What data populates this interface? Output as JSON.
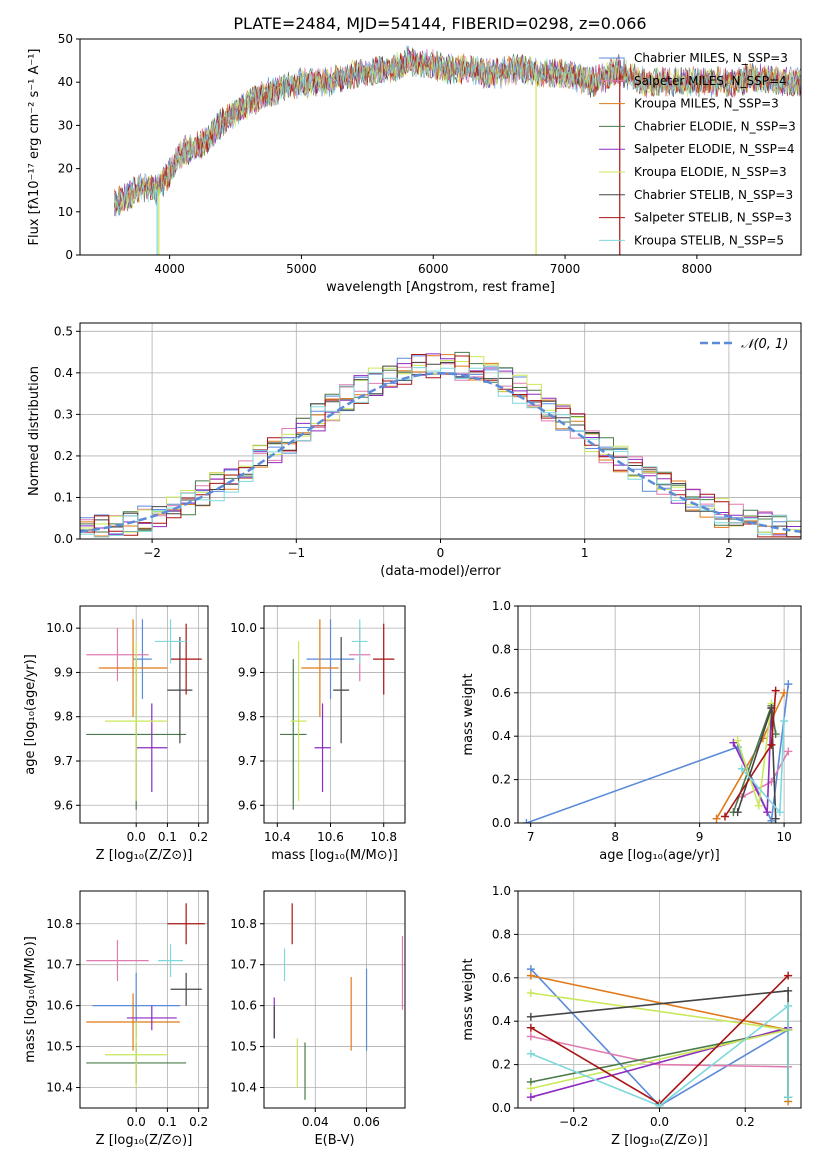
{
  "figure_title": "PLATE=2484, MJD=54144, FIBERID=0298, z=0.066",
  "colors": [
    "#5b8bd9",
    "#e07bb0",
    "#e07a1a",
    "#4a7a4a",
    "#8e2bc0",
    "#c9e85a",
    "#444444",
    "#a81414",
    "#7fd8dc"
  ],
  "chart_data": [
    {
      "id": "spectrum",
      "type": "line",
      "xlabel": "wavelength [Angstrom, rest frame]",
      "ylabel": "Flux [fλ10⁻¹⁷ erg cm⁻² s⁻¹ A⁻¹]",
      "xlim": [
        3320,
        8790
      ],
      "ylim": [
        0,
        50
      ],
      "xticks": [
        4000,
        5000,
        6000,
        7000,
        8000
      ],
      "yticks": [
        0,
        10,
        20,
        30,
        40,
        50
      ],
      "grid": false,
      "legend": "top-right",
      "series_labels": [
        "Chabrier MILES, N_SSP=3",
        "Salpeter MILES, N_SSP=4",
        "Kroupa MILES, N_SSP=3",
        "Chabrier ELODIE, N_SSP=3",
        "Salpeter ELODIE, N_SSP=4",
        "Kroupa ELODIE, N_SSP=3",
        "Chabrier STELIB, N_SSP=3",
        "Salpeter STELIB, N_SSP=3",
        "Kroupa STELIB, N_SSP=5"
      ],
      "continuum": [
        [
          3600,
          12
        ],
        [
          3700,
          14
        ],
        [
          3800,
          16
        ],
        [
          3900,
          15
        ],
        [
          3950,
          17
        ],
        [
          4000,
          19
        ],
        [
          4100,
          24
        ],
        [
          4200,
          25
        ],
        [
          4300,
          27
        ],
        [
          4400,
          31
        ],
        [
          4500,
          33
        ],
        [
          4600,
          35
        ],
        [
          4700,
          37
        ],
        [
          4800,
          38
        ],
        [
          4900,
          39
        ],
        [
          5000,
          40
        ],
        [
          5100,
          40
        ],
        [
          5200,
          40
        ],
        [
          5300,
          41
        ],
        [
          5400,
          42
        ],
        [
          5500,
          42
        ],
        [
          5600,
          43
        ],
        [
          5700,
          43
        ],
        [
          5800,
          45
        ],
        [
          5900,
          44
        ],
        [
          6000,
          44
        ],
        [
          6100,
          43
        ],
        [
          6200,
          43
        ],
        [
          6300,
          43
        ],
        [
          6400,
          42
        ],
        [
          6500,
          42
        ],
        [
          6600,
          43
        ],
        [
          6700,
          43
        ],
        [
          6800,
          42
        ],
        [
          6900,
          42
        ],
        [
          7000,
          42
        ],
        [
          7100,
          41
        ],
        [
          7200,
          40
        ],
        [
          7300,
          41
        ],
        [
          7400,
          43
        ],
        [
          7500,
          41
        ],
        [
          7600,
          40
        ],
        [
          7700,
          40
        ],
        [
          7800,
          40
        ],
        [
          7900,
          40
        ],
        [
          8000,
          40
        ],
        [
          8100,
          40
        ],
        [
          8200,
          40
        ],
        [
          8300,
          40
        ],
        [
          8400,
          41
        ],
        [
          8500,
          41
        ],
        [
          8600,
          40
        ],
        [
          8700,
          40
        ],
        [
          8790,
          40
        ]
      ],
      "drop_lines": [
        [
          3905,
          "#7fd8dc"
        ],
        [
          3918,
          "#c9e85a"
        ],
        [
          6780,
          "#c9e85a"
        ],
        [
          7415,
          "#a81414"
        ]
      ]
    },
    {
      "id": "residual-hist",
      "type": "area",
      "xlabel": "(data-model)/error",
      "ylabel": "Normed distribution",
      "xlim": [
        -2.5,
        2.5
      ],
      "ylim": [
        0,
        0.52
      ],
      "xticks": [
        -2,
        -1,
        0,
        1,
        2
      ],
      "xticklabels": [
        "−2",
        "−1",
        "0",
        "1",
        "2"
      ],
      "yticks": [
        0.0,
        0.1,
        0.2,
        0.3,
        0.4,
        0.5
      ],
      "grid": true,
      "legend": "top-right",
      "legend_label": "𝒩(0, 1)",
      "bin_width": 0.1,
      "bin_start": -2.5
    },
    {
      "id": "age-vs-z",
      "type": "scatter",
      "xlabel": "Z [log₁₀(Z/Z⊙)]",
      "ylabel": "age  [log₁₀(age/yr)]",
      "xlim": [
        -0.18,
        0.23
      ],
      "ylim": [
        9.56,
        10.05
      ],
      "xticks": [
        0.0,
        0.1,
        0.2
      ],
      "yticks": [
        9.6,
        9.7,
        9.8,
        9.9,
        10.0
      ],
      "grid": true,
      "points": [
        {
          "x": 0.02,
          "y": 9.93,
          "ex": 0.03,
          "ey": 0.09
        },
        {
          "x": -0.06,
          "y": 9.94,
          "ex": 0.1,
          "ey": 0.06
        },
        {
          "x": -0.01,
          "y": 9.91,
          "ex": 0.11,
          "ey": 0.11
        },
        {
          "x": 0.0,
          "y": 9.76,
          "ex": 0.16,
          "ey": 0.17
        },
        {
          "x": 0.05,
          "y": 9.73,
          "ex": 0.05,
          "ey": 0.1
        },
        {
          "x": 0.0,
          "y": 9.79,
          "ex": 0.1,
          "ey": 0.18
        },
        {
          "x": 0.14,
          "y": 9.86,
          "ex": 0.04,
          "ey": 0.12
        },
        {
          "x": 0.16,
          "y": 9.93,
          "ex": 0.05,
          "ey": 0.08
        },
        {
          "x": 0.11,
          "y": 9.97,
          "ex": 0.05,
          "ey": 0.05
        }
      ]
    },
    {
      "id": "age-vs-mass",
      "type": "scatter",
      "xlabel": "mass [log₁₀(M/M⊙)]",
      "ylabel": "",
      "xlim": [
        10.35,
        10.88
      ],
      "ylim": [
        9.56,
        10.05
      ],
      "xticks": [
        10.4,
        10.6,
        10.8
      ],
      "yticks": [
        9.6,
        9.7,
        9.8,
        9.9,
        10.0
      ],
      "grid": true,
      "points": [
        {
          "x": 10.6,
          "y": 9.93,
          "ex": 0.09,
          "ey": 0.09
        },
        {
          "x": 10.71,
          "y": 9.94,
          "ex": 0.04,
          "ey": 0.06
        },
        {
          "x": 10.56,
          "y": 9.91,
          "ex": 0.07,
          "ey": 0.11
        },
        {
          "x": 10.46,
          "y": 9.76,
          "ex": 0.05,
          "ey": 0.17
        },
        {
          "x": 10.57,
          "y": 9.73,
          "ex": 0.03,
          "ey": 0.1
        },
        {
          "x": 10.48,
          "y": 9.79,
          "ex": 0.03,
          "ey": 0.18
        },
        {
          "x": 10.64,
          "y": 9.86,
          "ex": 0.03,
          "ey": 0.12
        },
        {
          "x": 10.8,
          "y": 9.93,
          "ex": 0.04,
          "ey": 0.08
        },
        {
          "x": 10.71,
          "y": 9.97,
          "ex": 0.03,
          "ey": 0.05
        }
      ]
    },
    {
      "id": "mass-weight-vs-age",
      "type": "line",
      "xlabel": "age  [log₁₀(age/yr)]",
      "ylabel": "mass weight",
      "xlim": [
        6.85,
        10.2
      ],
      "ylim": [
        0,
        1.0
      ],
      "xticks": [
        7,
        8,
        9,
        10
      ],
      "yticks": [
        0.0,
        0.2,
        0.4,
        0.6,
        0.8,
        1.0
      ],
      "grid": true,
      "series": [
        {
          "points": [
            [
              6.95,
              0.0
            ],
            [
              9.45,
              0.35
            ],
            [
              9.85,
              0.01
            ],
            [
              10.05,
              0.64
            ]
          ]
        },
        {
          "points": [
            [
              9.5,
              0.12
            ],
            [
              9.85,
              0.19
            ],
            [
              10.05,
              0.33
            ]
          ]
        },
        {
          "points": [
            [
              9.2,
              0.02
            ],
            [
              9.75,
              0.39
            ],
            [
              10.0,
              0.6
            ]
          ]
        },
        {
          "points": [
            [
              9.4,
              0.05
            ],
            [
              9.85,
              0.54
            ],
            [
              9.9,
              0.41
            ]
          ]
        },
        {
          "points": [
            [
              9.4,
              0.37
            ],
            [
              9.8,
              0.05
            ],
            [
              9.85,
              0.53
            ]
          ]
        },
        {
          "points": [
            [
              9.45,
              0.38
            ],
            [
              9.7,
              0.08
            ],
            [
              9.85,
              0.55
            ]
          ]
        },
        {
          "points": [
            [
              9.45,
              0.05
            ],
            [
              9.85,
              0.53
            ],
            [
              9.9,
              0.02
            ]
          ]
        },
        {
          "points": [
            [
              9.3,
              0.03
            ],
            [
              9.85,
              0.36
            ],
            [
              9.9,
              0.61
            ]
          ]
        },
        {
          "points": [
            [
              9.5,
              0.25
            ],
            [
              9.95,
              0.05
            ],
            [
              10.0,
              0.47
            ]
          ]
        }
      ]
    },
    {
      "id": "mass-vs-z",
      "type": "scatter",
      "xlabel": "Z [log₁₀(Z/Z⊙)]",
      "ylabel": "mass [log₁₀(M/M⊙)]",
      "xlim": [
        -0.18,
        0.23
      ],
      "ylim": [
        10.35,
        10.88
      ],
      "xticks": [
        0.0,
        0.1,
        0.2
      ],
      "yticks": [
        10.4,
        10.5,
        10.6,
        10.7,
        10.8
      ],
      "grid": true,
      "points": [
        {
          "x": 0.0,
          "y": 10.6,
          "ex": 0.14,
          "ey": 0.08
        },
        {
          "x": -0.06,
          "y": 10.71,
          "ex": 0.1,
          "ey": 0.05
        },
        {
          "x": -0.01,
          "y": 10.56,
          "ex": 0.15,
          "ey": 0.07
        },
        {
          "x": 0.0,
          "y": 10.46,
          "ex": 0.16,
          "ey": 0.05
        },
        {
          "x": 0.05,
          "y": 10.57,
          "ex": 0.08,
          "ey": 0.03
        },
        {
          "x": 0.0,
          "y": 10.48,
          "ex": 0.1,
          "ey": 0.08
        },
        {
          "x": 0.16,
          "y": 10.64,
          "ex": 0.05,
          "ey": 0.04
        },
        {
          "x": 0.16,
          "y": 10.8,
          "ex": 0.06,
          "ey": 0.05
        },
        {
          "x": 0.11,
          "y": 10.71,
          "ex": 0.04,
          "ey": 0.04
        }
      ]
    },
    {
      "id": "mass-vs-ebv",
      "type": "scatter",
      "xlabel": "E(B-V)",
      "ylabel": "",
      "xlim": [
        0.02,
        0.075
      ],
      "ylim": [
        10.35,
        10.88
      ],
      "xticks": [
        0.04,
        0.06
      ],
      "yticks": [
        10.4,
        10.5,
        10.6,
        10.7,
        10.8
      ],
      "grid": true,
      "points": [
        {
          "x": 0.06,
          "y": 10.59,
          "ex": 0.0,
          "ey": 0.1
        },
        {
          "x": 0.074,
          "y": 10.68,
          "ex": 0.0,
          "ey": 0.09
        },
        {
          "x": 0.054,
          "y": 10.58,
          "ex": 0.0,
          "ey": 0.09
        },
        {
          "x": 0.036,
          "y": 10.44,
          "ex": 0.0,
          "ey": 0.07
        },
        {
          "x": 0.024,
          "y": 10.57,
          "ex": 0.0,
          "ey": 0.05
        },
        {
          "x": 0.033,
          "y": 10.46,
          "ex": 0.0,
          "ey": 0.06
        },
        {
          "x": 0.024,
          "y": 10.56,
          "ex": 0.0,
          "ey": 0.04
        },
        {
          "x": 0.031,
          "y": 10.8,
          "ex": 0.0,
          "ey": 0.05
        },
        {
          "x": 0.028,
          "y": 10.7,
          "ex": 0.0,
          "ey": 0.04
        }
      ]
    },
    {
      "id": "mass-weight-vs-z",
      "type": "line",
      "xlabel": "Z [log₁₀(Z/Z⊙)]",
      "ylabel": "mass weight",
      "xlim": [
        -0.33,
        0.33
      ],
      "ylim": [
        0,
        1.0
      ],
      "xticks": [
        -0.2,
        0.0,
        0.2
      ],
      "xticklabels": [
        "−0.2",
        "0.0",
        "0.2"
      ],
      "yticks": [
        0.0,
        0.2,
        0.4,
        0.6,
        0.8,
        1.0
      ],
      "grid": true,
      "series": [
        {
          "points": [
            [
              -0.3,
              0.64
            ],
            [
              0.0,
              0.01
            ],
            [
              0.3,
              0.36
            ]
          ]
        },
        {
          "points": [
            [
              -0.3,
              0.33
            ],
            [
              0.0,
              0.2
            ],
            [
              0.3,
              0.19
            ]
          ]
        },
        {
          "points": [
            [
              -0.3,
              0.61
            ],
            [
              0.3,
              0.36
            ],
            [
              0.3,
              0.03
            ]
          ]
        },
        {
          "points": [
            [
              -0.3,
              0.12
            ],
            [
              0.3,
              0.36
            ],
            [
              0.3,
              0.05
            ]
          ]
        },
        {
          "points": [
            [
              -0.3,
              0.05
            ],
            [
              0.3,
              0.37
            ]
          ]
        },
        {
          "points": [
            [
              -0.3,
              0.09
            ],
            [
              0.3,
              0.36
            ],
            [
              -0.3,
              0.53
            ]
          ]
        },
        {
          "points": [
            [
              -0.3,
              0.42
            ],
            [
              0.3,
              0.54
            ],
            [
              0.3,
              0.05
            ]
          ]
        },
        {
          "points": [
            [
              -0.3,
              0.37
            ],
            [
              0.0,
              0.02
            ],
            [
              0.3,
              0.61
            ]
          ]
        },
        {
          "points": [
            [
              -0.3,
              0.25
            ],
            [
              0.0,
              0.01
            ],
            [
              0.3,
              0.47
            ],
            [
              0.3,
              0.05
            ]
          ]
        }
      ]
    }
  ]
}
